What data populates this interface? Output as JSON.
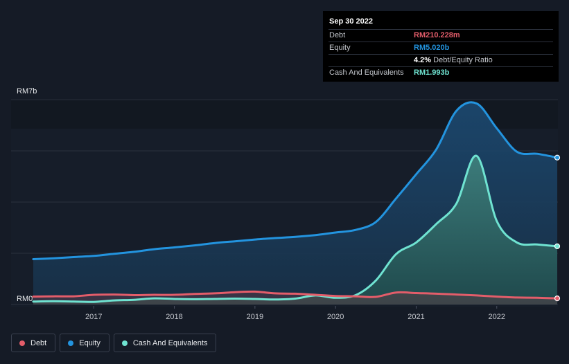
{
  "tooltip": {
    "date": "Sep 30 2022",
    "debt_label": "Debt",
    "debt_value": "RM210.228m",
    "equity_label": "Equity",
    "equity_value": "RM5.020b",
    "ratio_value": "4.2%",
    "ratio_label": "Debt/Equity Ratio",
    "cash_label": "Cash And Equivalents",
    "cash_value": "RM1.993b"
  },
  "colors": {
    "debt": "#e35d6a",
    "equity": "#2394df",
    "cash": "#6fe3d1",
    "background": "#151b26"
  },
  "legend": [
    {
      "label": "Debt",
      "color": "#e35d6a"
    },
    {
      "label": "Equity",
      "color": "#2394df"
    },
    {
      "label": "Cash And Equivalents",
      "color": "#6fe3d1"
    }
  ],
  "chart_data": {
    "type": "area",
    "title": "",
    "xlabel": "",
    "ylabel": "",
    "y_unit": "billion MYR",
    "ylim": [
      0,
      7
    ],
    "y_tick_labels": [
      "RM7b",
      "RM0"
    ],
    "x_tick_labels": [
      "2017",
      "2018",
      "2019",
      "2020",
      "2021",
      "2022"
    ],
    "x_ticks": [
      2017,
      2018,
      2019,
      2020,
      2021,
      2022
    ],
    "xlim": [
      2016.25,
      2022.75
    ],
    "series": [
      {
        "name": "Equity",
        "x": [
          2016.25,
          2016.5,
          2016.75,
          2017.0,
          2017.25,
          2017.5,
          2017.75,
          2018.0,
          2018.25,
          2018.5,
          2018.75,
          2019.0,
          2019.25,
          2019.5,
          2019.75,
          2020.0,
          2020.25,
          2020.5,
          2020.75,
          2021.0,
          2021.25,
          2021.5,
          2021.75,
          2022.0,
          2022.25,
          2022.5,
          2022.75
        ],
        "values": [
          1.55,
          1.58,
          1.62,
          1.66,
          1.73,
          1.8,
          1.89,
          1.95,
          2.02,
          2.1,
          2.16,
          2.22,
          2.27,
          2.31,
          2.37,
          2.46,
          2.55,
          2.82,
          3.62,
          4.45,
          5.3,
          6.62,
          6.87,
          6.02,
          5.22,
          5.15,
          5.02
        ]
      },
      {
        "name": "Cash And Equivalents",
        "x": [
          2016.25,
          2016.5,
          2016.75,
          2017.0,
          2017.25,
          2017.5,
          2017.75,
          2018.0,
          2018.25,
          2018.5,
          2018.75,
          2019.0,
          2019.25,
          2019.5,
          2019.75,
          2020.0,
          2020.25,
          2020.5,
          2020.75,
          2021.0,
          2021.25,
          2021.5,
          2021.75,
          2022.0,
          2022.25,
          2022.5,
          2022.75
        ],
        "values": [
          0.1,
          0.11,
          0.1,
          0.09,
          0.14,
          0.16,
          0.21,
          0.19,
          0.18,
          0.19,
          0.2,
          0.19,
          0.17,
          0.2,
          0.31,
          0.23,
          0.32,
          0.82,
          1.72,
          2.12,
          2.75,
          3.45,
          5.08,
          2.85,
          2.12,
          2.05,
          1.99
        ]
      },
      {
        "name": "Debt",
        "x": [
          2016.25,
          2016.5,
          2016.75,
          2017.0,
          2017.25,
          2017.5,
          2017.75,
          2018.0,
          2018.25,
          2018.5,
          2018.75,
          2019.0,
          2019.25,
          2019.5,
          2019.75,
          2020.0,
          2020.25,
          2020.5,
          2020.75,
          2021.0,
          2021.25,
          2021.5,
          2021.75,
          2022.0,
          2022.25,
          2022.5,
          2022.75
        ],
        "values": [
          0.27,
          0.28,
          0.28,
          0.33,
          0.34,
          0.32,
          0.33,
          0.33,
          0.36,
          0.38,
          0.42,
          0.44,
          0.38,
          0.37,
          0.33,
          0.29,
          0.28,
          0.26,
          0.41,
          0.39,
          0.37,
          0.34,
          0.31,
          0.27,
          0.24,
          0.23,
          0.21
        ]
      }
    ]
  }
}
